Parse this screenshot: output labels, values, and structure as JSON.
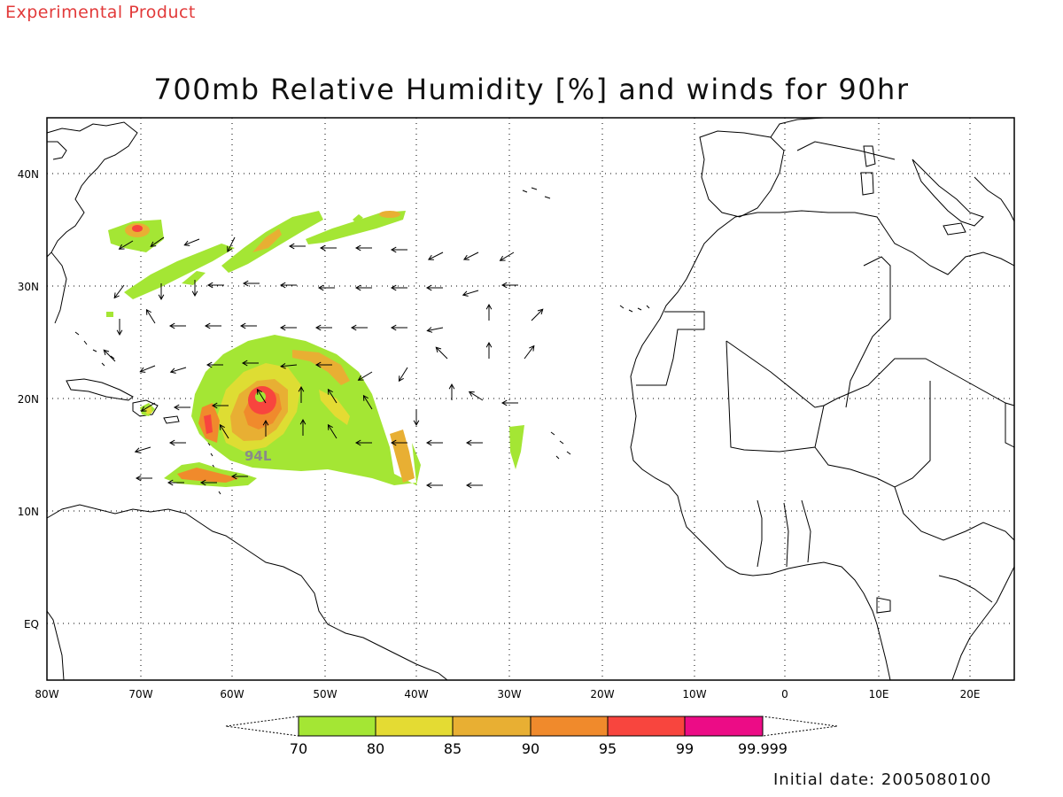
{
  "header": {
    "product_note": "Experimental Product",
    "title": "700mb Relative Humidity [%] and winds for 90hr"
  },
  "map": {
    "lon_labels": [
      "80W",
      "70W",
      "60W",
      "50W",
      "40W",
      "30W",
      "20W",
      "10W",
      "0",
      "10E",
      "20E"
    ],
    "lat_labels": [
      "40N",
      "30N",
      "20N",
      "10N",
      "EQ"
    ],
    "storm_label": "94L",
    "land_color": "#ffffff",
    "grid": "dotted"
  },
  "colorbar": {
    "labels": [
      "70",
      "80",
      "85",
      "90",
      "95",
      "99",
      "99.999"
    ],
    "colors": [
      "#a4e634",
      "#e4db33",
      "#e8af33",
      "#f08a2c",
      "#f8453e",
      "#ec0c86"
    ]
  },
  "footer": {
    "initial_date": "Initial date: 2005080100"
  }
}
